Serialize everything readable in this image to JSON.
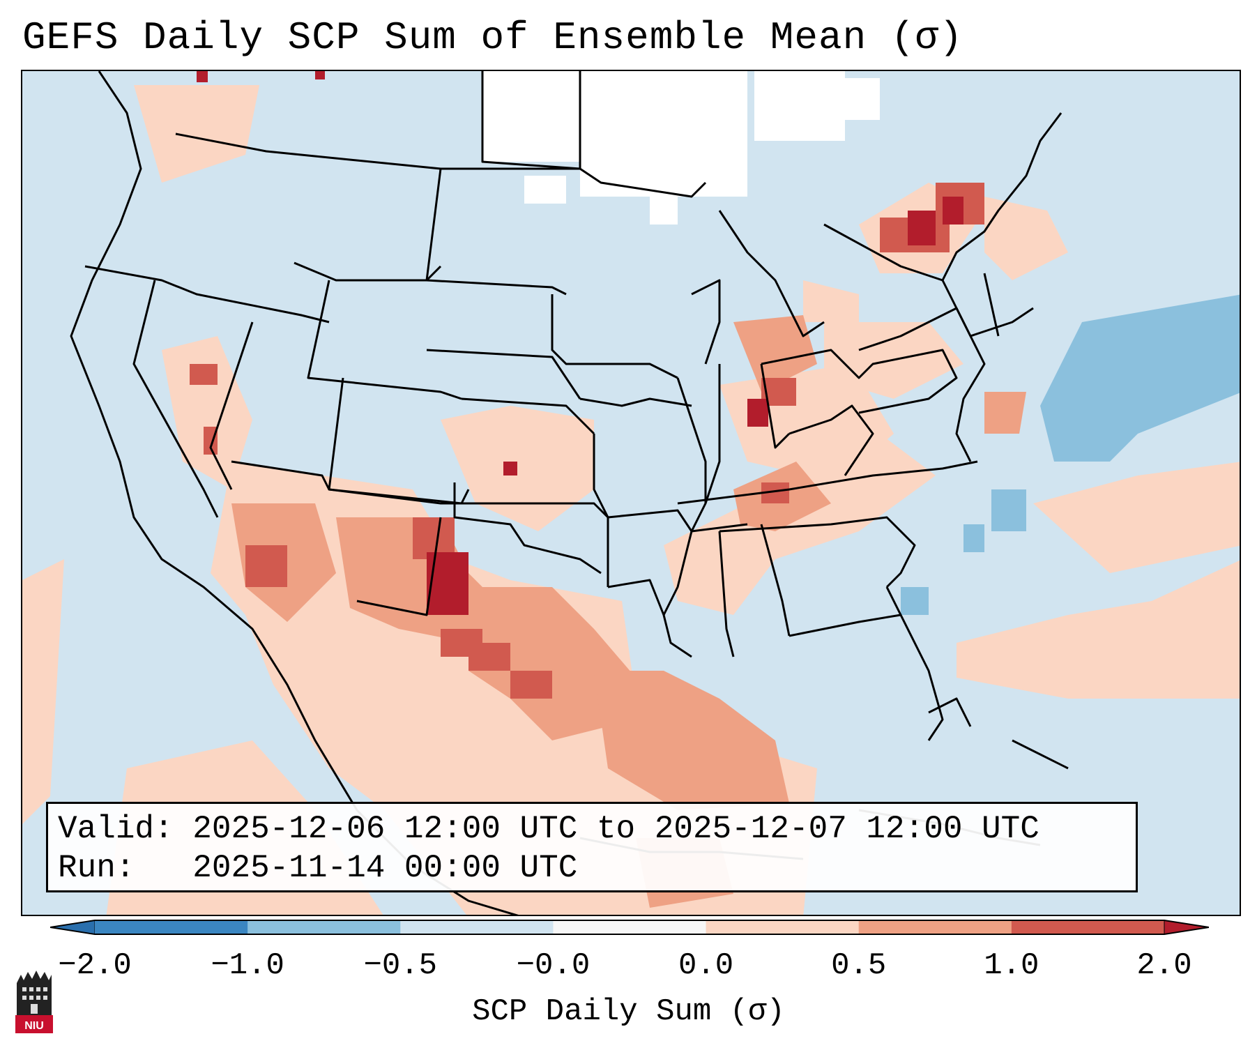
{
  "title": "GEFS Daily SCP Sum of Ensemble Mean (σ)",
  "info": {
    "valid_label": "Valid:",
    "valid_value": "2025-12-06 12:00 UTC to 2025-12-07 12:00 UTC",
    "run_label": "Run:",
    "run_value": "2025-11-14 00:00 UTC"
  },
  "colorbar": {
    "label": "SCP Daily Sum (σ)",
    "ticks": [
      "−2.0",
      "−1.0",
      "−0.5",
      "−0.0",
      "0.0",
      "0.5",
      "1.0",
      "2.0"
    ],
    "colors": [
      "#3b86c1",
      "#8bc0dd",
      "#d1e4f0",
      "#f7f7f7",
      "#fbd6c3",
      "#eea184",
      "#d15a4f"
    ],
    "extend_low": "#2a6fad",
    "extend_high": "#b21d2c"
  },
  "logo": {
    "text": "NIU"
  },
  "colors": {
    "ocean_bg": "#d1e4f0",
    "light_red": "#fbd6c3",
    "mid_red": "#eea184",
    "red": "#d15a4f",
    "dark_red": "#b21d2c",
    "light_blue": "#8bc0dd",
    "white": "#ffffff"
  }
}
